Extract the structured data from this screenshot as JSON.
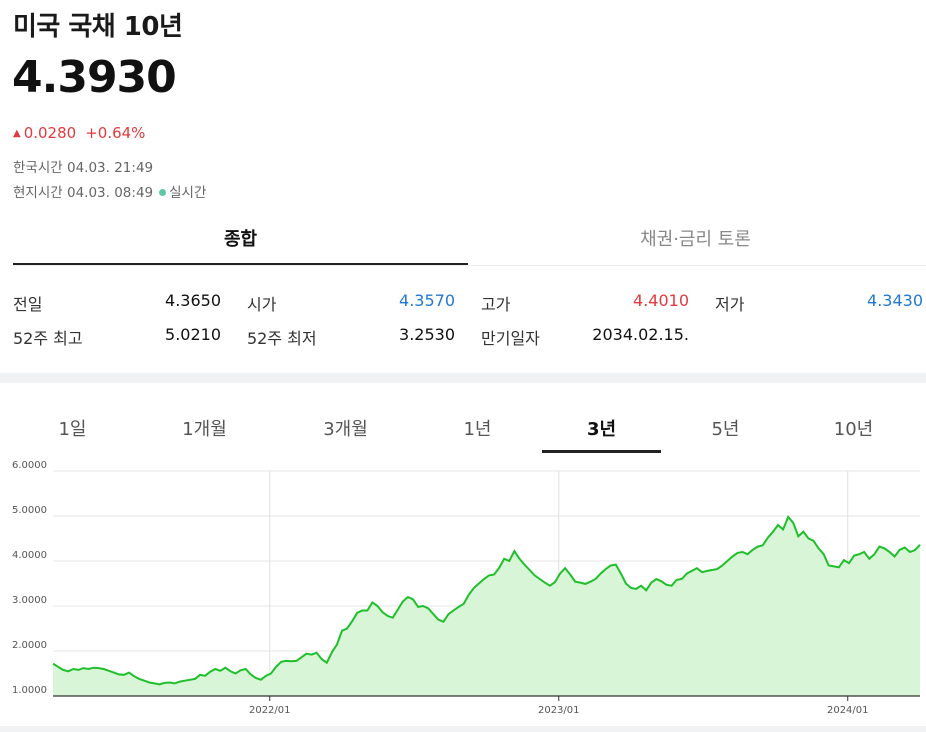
{
  "header": {
    "title": "미국 국채 10년",
    "price": "4.3930",
    "change_abs": "0.0280",
    "change_pct": "+0.64%",
    "korea_time_label": "한국시간",
    "korea_time": "04.03. 21:49",
    "local_time_label": "현지시간",
    "local_time": "04.03. 08:49",
    "realtime_label": "실시간"
  },
  "tabs": [
    {
      "label": "종합",
      "active": true
    },
    {
      "label": "채권·금리 토론",
      "active": false
    }
  ],
  "stats": [
    {
      "label": "전일",
      "value": "4.3650",
      "color": "#111111"
    },
    {
      "label": "시가",
      "value": "4.3570",
      "color": "#1f78d1"
    },
    {
      "label": "고가",
      "value": "4.4010",
      "color": "#e03a3e"
    },
    {
      "label": "저가",
      "value": "4.3430",
      "color": "#1f78d1"
    },
    {
      "label": "52주 최고",
      "value": "5.0210",
      "color": "#111111"
    },
    {
      "label": "52주 최저",
      "value": "3.2530",
      "color": "#111111"
    },
    {
      "label": "만기일자",
      "value": "2034.02.15.",
      "color": "#111111"
    }
  ],
  "period_tabs": [
    {
      "label": "1일",
      "selected": false
    },
    {
      "label": "1개월",
      "selected": false
    },
    {
      "label": "3개월",
      "selected": false
    },
    {
      "label": "1년",
      "selected": false
    },
    {
      "label": "3년",
      "selected": true
    },
    {
      "label": "5년",
      "selected": false
    },
    {
      "label": "10년",
      "selected": false
    }
  ],
  "colors": {
    "up": "#e03a3e",
    "down": "#1f78d1",
    "line": "#1fbf2a",
    "fill": "#d8f5d8"
  },
  "chart_data": {
    "type": "area",
    "title": "",
    "xlabel": "",
    "ylabel": "",
    "ylim": [
      1.0,
      6.0
    ],
    "y_ticks": [
      "6.0000",
      "5.0000",
      "4.0000",
      "3.0000",
      "2.0000",
      "1.0000"
    ],
    "x_ticks": [
      "2022/01",
      "2023/01",
      "2024/01"
    ],
    "grid": true,
    "legend": "none",
    "x_start": "2021/04",
    "x_end": "2024/04",
    "series": [
      {
        "values": [
          1.72,
          1.65,
          1.58,
          1.55,
          1.6,
          1.58,
          1.62,
          1.6,
          1.63,
          1.62,
          1.6,
          1.56,
          1.52,
          1.48,
          1.47,
          1.52,
          1.44,
          1.38,
          1.34,
          1.3,
          1.28,
          1.26,
          1.29,
          1.3,
          1.28,
          1.32,
          1.34,
          1.36,
          1.38,
          1.47,
          1.45,
          1.54,
          1.6,
          1.56,
          1.63,
          1.55,
          1.5,
          1.57,
          1.6,
          1.48,
          1.4,
          1.36,
          1.45,
          1.5,
          1.65,
          1.76,
          1.78,
          1.77,
          1.78,
          1.86,
          1.94,
          1.92,
          1.96,
          1.82,
          1.74,
          1.97,
          2.14,
          2.45,
          2.5,
          2.66,
          2.85,
          2.9,
          2.9,
          3.08,
          3.0,
          2.86,
          2.78,
          2.74,
          2.92,
          3.1,
          3.2,
          3.15,
          2.98,
          3.0,
          2.95,
          2.82,
          2.7,
          2.65,
          2.82,
          2.9,
          2.98,
          3.05,
          3.25,
          3.4,
          3.5,
          3.6,
          3.68,
          3.7,
          3.85,
          4.05,
          4.0,
          4.22,
          4.05,
          3.92,
          3.8,
          3.68,
          3.6,
          3.52,
          3.45,
          3.53,
          3.72,
          3.84,
          3.7,
          3.54,
          3.52,
          3.49,
          3.54,
          3.6,
          3.72,
          3.82,
          3.9,
          3.92,
          3.72,
          3.5,
          3.4,
          3.38,
          3.45,
          3.35,
          3.52,
          3.6,
          3.55,
          3.47,
          3.45,
          3.58,
          3.6,
          3.72,
          3.78,
          3.84,
          3.75,
          3.78,
          3.8,
          3.82,
          3.9,
          4.0,
          4.1,
          4.18,
          4.2,
          4.15,
          4.25,
          4.32,
          4.35,
          4.52,
          4.65,
          4.8,
          4.7,
          4.98,
          4.85,
          4.55,
          4.65,
          4.5,
          4.45,
          4.28,
          4.15,
          3.9,
          3.88,
          3.86,
          4.02,
          3.95,
          4.12,
          4.15,
          4.2,
          4.05,
          4.15,
          4.32,
          4.28,
          4.2,
          4.1,
          4.25,
          4.3,
          4.2,
          4.24,
          4.36
        ]
      }
    ]
  }
}
